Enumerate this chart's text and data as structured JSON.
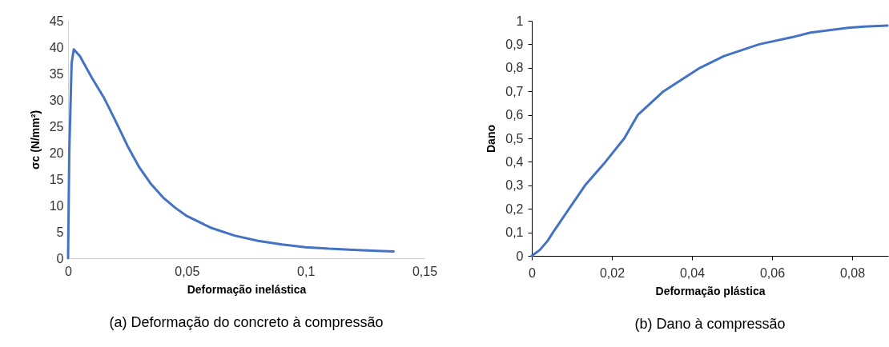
{
  "chart_data": [
    {
      "type": "line",
      "title": "(a) Deformação do concreto à compressão",
      "xlabel": "Deformação inelástica",
      "ylabel": "σc (N/mm²)",
      "xlim": [
        0,
        0.15
      ],
      "xticks": [
        0,
        {
          "value": 0.05,
          "label": "0,05"
        },
        {
          "value": 0.1,
          "label": "0,1"
        },
        {
          "value": 0.15,
          "label": "0,15"
        }
      ],
      "ylim": [
        0,
        45
      ],
      "yticks": [
        0,
        5,
        10,
        15,
        20,
        25,
        30,
        35,
        40,
        45
      ],
      "grid": false,
      "marker": "none",
      "line_style": "solid",
      "series": [
        {
          "color": "#4472c4",
          "x": [
            0,
            0.0005,
            0.0015,
            0.0024,
            0.005,
            0.01,
            0.015,
            0.02,
            0.025,
            0.03,
            0.035,
            0.04,
            0.045,
            0.05,
            0.06,
            0.07,
            0.08,
            0.09,
            0.1,
            0.11,
            0.12,
            0.13,
            0.137
          ],
          "values": [
            0,
            20,
            37,
            39.6,
            38.3,
            34.2,
            30.5,
            26,
            21.3,
            17.2,
            14,
            11.5,
            9.6,
            8,
            5.8,
            4.3,
            3.3,
            2.6,
            2.1,
            1.8,
            1.6,
            1.4,
            1.3
          ]
        }
      ]
    },
    {
      "type": "line",
      "title": "(b) Dano à compressão",
      "xlabel": "Deformação plástica",
      "ylabel": "Dano",
      "xlim": [
        0,
        0.089
      ],
      "xticks": [
        0,
        {
          "value": 0.02,
          "label": "0,02"
        },
        {
          "value": 0.04,
          "label": "0,04"
        },
        {
          "value": 0.06,
          "label": "0,06"
        },
        {
          "value": 0.08,
          "label": "0,08"
        }
      ],
      "ylim": [
        0,
        1
      ],
      "yticks": [
        0,
        {
          "value": 0.1,
          "label": "0,1"
        },
        {
          "value": 0.2,
          "label": "0,2"
        },
        {
          "value": 0.3,
          "label": "0,3"
        },
        {
          "value": 0.4,
          "label": "0,4"
        },
        {
          "value": 0.5,
          "label": "0,5"
        },
        {
          "value": 0.6,
          "label": "0,6"
        },
        {
          "value": 0.7,
          "label": "0,7"
        },
        {
          "value": 0.8,
          "label": "0,8"
        },
        {
          "value": 0.9,
          "label": "0,9"
        },
        1
      ],
      "grid": false,
      "marker": "none",
      "line_style": "solid",
      "series": [
        {
          "color": "#4472c4",
          "x": [
            0,
            0.002,
            0.004,
            0.0053,
            0.0093,
            0.0133,
            0.0184,
            0.0231,
            0.0265,
            0.0329,
            0.042,
            0.048,
            0.0568,
            0.065,
            0.0696,
            0.079,
            0.083,
            0.0888
          ],
          "values": [
            0,
            0.025,
            0.065,
            0.1,
            0.2,
            0.3,
            0.4,
            0.5,
            0.6,
            0.7,
            0.8,
            0.85,
            0.9,
            0.93,
            0.95,
            0.97,
            0.975,
            0.98
          ]
        }
      ]
    }
  ]
}
